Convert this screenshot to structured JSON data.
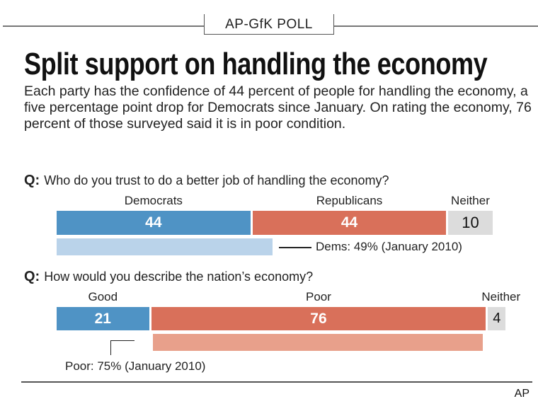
{
  "kicker": "AP-GfK POLL",
  "title": "Split support on handling the economy",
  "dek": "Each party has the confidence of 44 percent of people for handling the economy, a five percentage point drop for Democrats since January. On rating the economy, 76 percent of those surveyed said it is in poor condition.",
  "credit": "AP",
  "colors": {
    "blue": "#4f93c5",
    "red": "#d9705a",
    "gray": "#dcdcdc",
    "light_blue": "#bad3ea",
    "light_red": "#e8a08b"
  },
  "chart_data": [
    {
      "type": "bar",
      "orientation": "horizontal-stacked",
      "q_prefix": "Q:",
      "question": "Who do you trust to do a better job of handling the economy?",
      "categories": [
        "Democrats",
        "Republicans",
        "Neither"
      ],
      "values": [
        44,
        44,
        10
      ],
      "comparison": {
        "category": "Democrats",
        "value": 49,
        "label": "Dems: 49% (January 2010)"
      }
    },
    {
      "type": "bar",
      "orientation": "horizontal-stacked",
      "q_prefix": "Q:",
      "question": "How would you describe the nation’s economy?",
      "categories": [
        "Good",
        "Poor",
        "Neither"
      ],
      "values": [
        21,
        76,
        4
      ],
      "comparison": {
        "category": "Poor",
        "value": 75,
        "label": "Poor: 75% (January 2010)"
      }
    }
  ]
}
